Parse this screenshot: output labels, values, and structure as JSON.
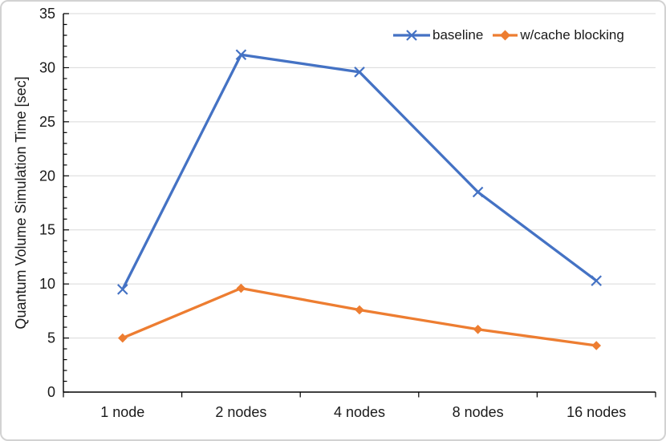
{
  "figure": {
    "background": "#ffffff",
    "border_color": "#d2d2d2"
  },
  "chart_data": {
    "type": "line",
    "title": "",
    "xlabel": "",
    "ylabel": "Quantum Volume Simulation Time [sec]",
    "categories": [
      "1 node",
      "2 nodes",
      "4 nodes",
      "8 nodes",
      "16 nodes"
    ],
    "series": [
      {
        "name": "baseline",
        "color": "#4472C4",
        "marker": "x",
        "values": [
          9.5,
          31.2,
          29.6,
          18.5,
          10.3
        ]
      },
      {
        "name": "w/cache blocking",
        "color": "#ED7D31",
        "marker": "diamond",
        "values": [
          5.0,
          9.6,
          7.6,
          5.8,
          4.3
        ]
      }
    ],
    "ylim": [
      0,
      35
    ],
    "y_ticks": [
      0,
      5,
      10,
      15,
      20,
      25,
      30,
      35
    ],
    "y_minor_step": 1,
    "grid": true,
    "gridline_color": "#D9D9D9",
    "axis_color": "#000000",
    "legend_position": "top-right"
  }
}
